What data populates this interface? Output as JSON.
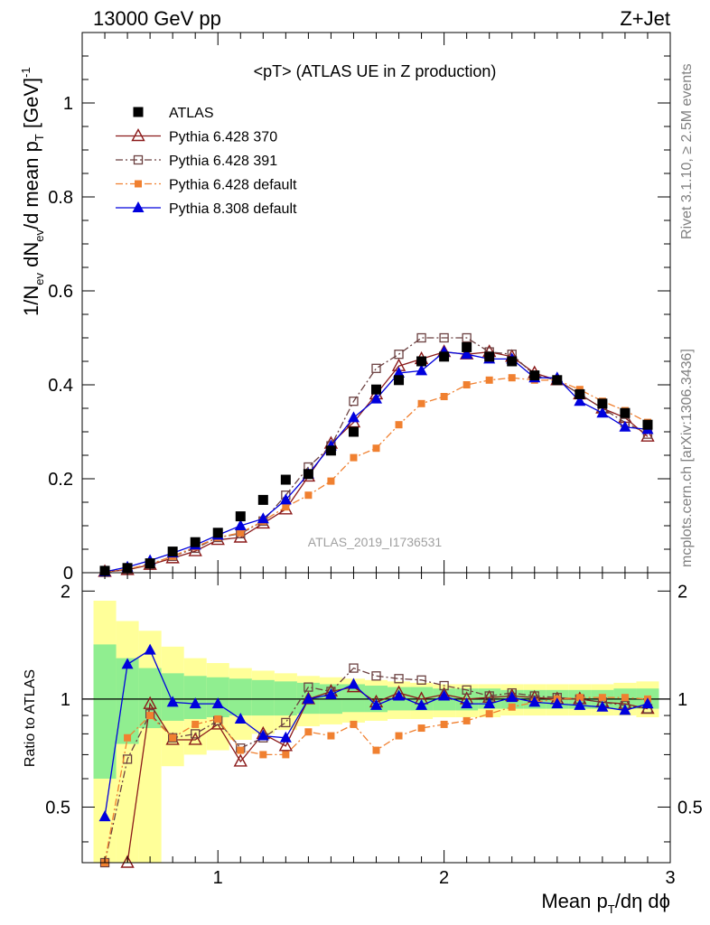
{
  "header": {
    "left": "13000 GeV pp",
    "right": "Z+Jet"
  },
  "side_labels": {
    "rivet": "Rivet 3.1.10, ≥ 2.5M events",
    "mcplots": "mcplots.cern.ch [arXiv:1306.3436]"
  },
  "watermark": "ATLAS_2019_I1736531",
  "chart_data": [
    {
      "type": "line",
      "title": "<pT> (ATLAS UE in Z production)",
      "ylabel": "1/N_ev dN_ev/d mean p_T [GeV]^-1",
      "xlim": [
        0.4,
        3.0
      ],
      "ylim": [
        0,
        1.15
      ],
      "yticks": [
        0,
        0.2,
        0.4,
        0.6,
        0.8,
        1
      ],
      "ytick_labels": [
        "0",
        "0.2",
        "0.4",
        "0.6",
        "0.8",
        "1"
      ],
      "legend_position": "top-left",
      "x": [
        0.5,
        0.6,
        0.7,
        0.8,
        0.9,
        1.0,
        1.1,
        1.2,
        1.3,
        1.4,
        1.5,
        1.6,
        1.7,
        1.8,
        1.9,
        2.0,
        2.1,
        2.2,
        2.3,
        2.4,
        2.5,
        2.6,
        2.7,
        2.8,
        2.9
      ],
      "series": [
        {
          "name": "ATLAS",
          "color": "#000000",
          "marker": "square-filled",
          "values": [
            0.004,
            0.01,
            0.02,
            0.045,
            0.065,
            0.085,
            0.12,
            0.155,
            0.198,
            0.21,
            0.26,
            0.3,
            0.39,
            0.41,
            0.45,
            0.46,
            0.48,
            0.46,
            0.45,
            0.42,
            0.41,
            0.38,
            0.36,
            0.34,
            0.315
          ]
        },
        {
          "name": "Pythia 6.428 370",
          "color": "#8b1a1a",
          "marker": "triangle-open",
          "linestyle": "solid",
          "values": [
            0.002,
            0.006,
            0.017,
            0.031,
            0.046,
            0.07,
            0.075,
            0.105,
            0.135,
            0.205,
            0.275,
            0.32,
            0.38,
            0.44,
            0.455,
            0.47,
            0.465,
            0.47,
            0.46,
            0.425,
            0.41,
            0.38,
            0.35,
            0.33,
            0.29
          ]
        },
        {
          "name": "Pythia 6.428 391",
          "color": "#6b4040",
          "marker": "square-open",
          "linestyle": "dashdot",
          "values": [
            0.001,
            0.007,
            0.018,
            0.035,
            0.052,
            0.075,
            0.083,
            0.11,
            0.165,
            0.225,
            0.27,
            0.365,
            0.435,
            0.465,
            0.5,
            0.5,
            0.5,
            0.47,
            0.465,
            0.42,
            0.41,
            0.38,
            0.35,
            0.32,
            0.295
          ]
        },
        {
          "name": "Pythia 6.428 default",
          "color": "#f08030",
          "marker": "square-filled-small",
          "linestyle": "dashdot",
          "values": [
            0.001,
            0.008,
            0.018,
            0.035,
            0.055,
            0.075,
            0.085,
            0.11,
            0.14,
            0.165,
            0.195,
            0.245,
            0.265,
            0.315,
            0.36,
            0.375,
            0.4,
            0.41,
            0.415,
            0.41,
            0.41,
            0.39,
            0.365,
            0.345,
            0.32
          ]
        },
        {
          "name": "Pythia 8.308 default",
          "color": "#0000dd",
          "marker": "triangle-filled",
          "linestyle": "solid",
          "values": [
            0.002,
            0.012,
            0.026,
            0.042,
            0.059,
            0.08,
            0.1,
            0.115,
            0.155,
            0.21,
            0.27,
            0.33,
            0.37,
            0.425,
            0.43,
            0.47,
            0.465,
            0.455,
            0.455,
            0.415,
            0.415,
            0.365,
            0.34,
            0.31,
            0.305
          ]
        }
      ]
    },
    {
      "type": "line",
      "ylabel": "Ratio to ATLAS",
      "xlabel": "Mean p_T/dη dϕ",
      "xlim": [
        0.4,
        3.0
      ],
      "ylim": [
        0.35,
        2.25
      ],
      "yscale": "log",
      "yticks": [
        0.5,
        1,
        2
      ],
      "ytick_labels": [
        "0.5",
        "1",
        "2"
      ],
      "xticks": [
        1,
        2,
        3
      ],
      "xtick_labels": [
        "1",
        "2",
        "3"
      ],
      "reference_line": 1,
      "bands": {
        "green": {
          "color": "#90ee90",
          "lo": [
            0.6,
            0.75,
            0.83,
            0.87,
            0.88,
            0.89,
            0.9,
            0.9,
            0.9,
            0.91,
            0.91,
            0.92,
            0.92,
            0.93,
            0.93,
            0.93,
            0.93,
            0.94,
            0.94,
            0.94,
            0.94,
            0.94,
            0.94,
            0.94,
            0.94
          ],
          "hi": [
            1.42,
            1.3,
            1.22,
            1.18,
            1.16,
            1.15,
            1.14,
            1.13,
            1.12,
            1.11,
            1.1,
            1.1,
            1.09,
            1.08,
            1.08,
            1.07,
            1.07,
            1.07,
            1.06,
            1.06,
            1.06,
            1.06,
            1.06,
            1.07,
            1.07
          ]
        },
        "yellow": {
          "color": "#ffff99",
          "lo": [
            0.35,
            0.35,
            0.35,
            0.65,
            0.7,
            0.72,
            0.77,
            0.8,
            0.82,
            0.84,
            0.85,
            0.86,
            0.87,
            0.88,
            0.88,
            0.89,
            0.89,
            0.89,
            0.9,
            0.9,
            0.9,
            0.9,
            0.9,
            0.9,
            0.89
          ],
          "hi": [
            1.88,
            1.65,
            1.55,
            1.4,
            1.3,
            1.26,
            1.22,
            1.2,
            1.18,
            1.16,
            1.15,
            1.14,
            1.13,
            1.12,
            1.11,
            1.1,
            1.1,
            1.1,
            1.1,
            1.1,
            1.1,
            1.1,
            1.1,
            1.11,
            1.12
          ]
        }
      },
      "series": [
        {
          "name": "Pythia 6.428 370",
          "color": "#8b1a1a",
          "marker": "triangle-open",
          "linestyle": "solid",
          "values": [
            null,
            0.35,
            0.97,
            0.77,
            0.77,
            0.85,
            0.67,
            0.8,
            0.74,
            1.0,
            1.05,
            1.08,
            0.98,
            1.04,
            1.0,
            1.03,
            1.0,
            1.01,
            1.02,
            1.01,
            1.0,
            1.0,
            0.98,
            0.97,
            0.94
          ]
        },
        {
          "name": "Pythia 6.428 391",
          "color": "#6b4040",
          "marker": "square-open",
          "linestyle": "dashdot",
          "values": [
            0.35,
            0.68,
            0.91,
            0.78,
            0.8,
            0.87,
            0.73,
            0.78,
            0.86,
            1.08,
            1.05,
            1.22,
            1.16,
            1.14,
            1.13,
            1.09,
            1.06,
            1.02,
            1.04,
            1.02,
            1.01,
            1.0,
            0.98,
            0.96,
            0.94
          ]
        },
        {
          "name": "Pythia 6.428 default",
          "color": "#f08030",
          "marker": "square-filled-small",
          "linestyle": "dashdot",
          "values": [
            0.35,
            0.78,
            0.9,
            0.78,
            0.85,
            0.88,
            0.72,
            0.7,
            0.7,
            0.81,
            0.79,
            0.85,
            0.72,
            0.79,
            0.83,
            0.85,
            0.87,
            0.91,
            0.95,
            0.98,
            1.0,
            1.01,
            1.01,
            1.01,
            1.0
          ]
        },
        {
          "name": "Pythia 8.308 default",
          "color": "#0000dd",
          "marker": "triangle-filled",
          "linestyle": "solid",
          "values": [
            0.47,
            1.25,
            1.37,
            0.98,
            0.97,
            0.97,
            0.88,
            0.79,
            0.78,
            1.0,
            1.03,
            1.1,
            0.96,
            1.02,
            0.96,
            1.02,
            0.97,
            0.97,
            1.01,
            0.98,
            0.97,
            0.96,
            0.95,
            0.93,
            0.97
          ]
        }
      ]
    }
  ]
}
